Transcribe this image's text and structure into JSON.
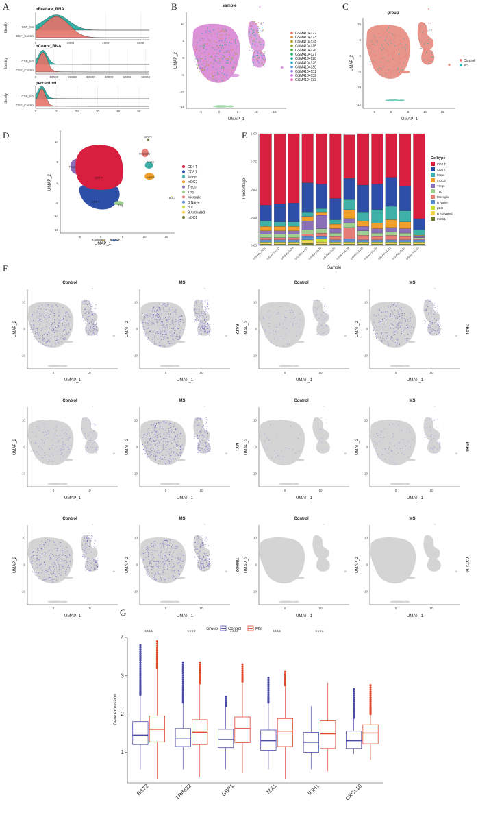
{
  "panels": {
    "A": "A",
    "B": "B",
    "C": "C",
    "D": "D",
    "E": "E",
    "F": "F",
    "G": "G"
  },
  "ridge": {
    "ylabel": "Identity",
    "groups": [
      "CSF_MS",
      "CSF_Control"
    ],
    "colors": {
      "CSF_MS": "#1fa79a",
      "CSF_Control": "#e57369"
    },
    "plots": [
      {
        "title": "nFeature_RNA",
        "ticks": [
          "0",
          "2000",
          "4000",
          "6000"
        ],
        "xmax": 6500,
        "peak": 1200
      },
      {
        "title": "nCount_RNA",
        "ticks": [
          "0",
          "10000",
          "20000",
          "30000",
          "40000",
          "50000",
          "60000"
        ],
        "xmax": 62000,
        "peak": 4000
      },
      {
        "title": "percent.mt",
        "ticks": [
          "0",
          "10",
          "20",
          "30",
          "40",
          "50"
        ],
        "xmax": 55,
        "peak": 3
      }
    ]
  },
  "umap_sample": {
    "title": "sample",
    "xlabel": "UMAP_1",
    "ylabel": "UMAP_2",
    "xticks": [
      "-5",
      "0",
      "5",
      "10",
      "15"
    ],
    "yticks": [
      "10",
      "5",
      "0",
      "-5",
      "-10",
      "-15"
    ],
    "legend": [
      "GSM4104122",
      "GSM4104123",
      "GSM4104124",
      "GSM4104125",
      "GSM4104126",
      "GSM4104127",
      "GSM4104128",
      "GSM4104129",
      "GSM4104130",
      "GSM4104131",
      "GSM4104132",
      "GSM4104133"
    ],
    "colors": [
      "#e8736b",
      "#d98a3a",
      "#b69c2a",
      "#8ea628",
      "#4fae3c",
      "#27b06f",
      "#22b0a2",
      "#25a9c9",
      "#4a97e0",
      "#8f7ee8",
      "#c86ad9",
      "#e466b0"
    ]
  },
  "umap_group": {
    "title": "group",
    "xlabel": "UMAP_1",
    "ylabel": "UMAP_2",
    "xticks": [
      "-5",
      "0",
      "5",
      "10",
      "15"
    ],
    "yticks": [
      "10",
      "5",
      "0",
      "-5",
      "-10",
      "-15"
    ],
    "legend": [
      "Control",
      "MS"
    ],
    "colors": [
      "#e8736b",
      "#1fb8b0"
    ]
  },
  "umap_celltype": {
    "xlabel": "UMAP_1",
    "ylabel": "UMAP_2",
    "xticks": [
      "-5",
      "0",
      "5",
      "10",
      "15"
    ],
    "yticks": [
      "10",
      "5",
      "0",
      "-5",
      "-10",
      "-15"
    ],
    "legend": [
      "CD4 T",
      "CD8 T",
      "Mono",
      "mDC2",
      "Tregs",
      "Tdg",
      "Microglia",
      "B Naive",
      "pDC",
      "B Activated",
      "mDC1"
    ],
    "colors": [
      "#d81f3f",
      "#2d4fa8",
      "#3fb0a8",
      "#f0a02a",
      "#8a70b8",
      "#9fcf8f",
      "#e47d78",
      "#5b8ed0",
      "#c8dd3a",
      "#f4d35e",
      "#6b7a2e"
    ],
    "cluster_labels": [
      "CD4 T",
      "CD8 T",
      "Mono",
      "mDC2",
      "Tdg",
      "Microglia",
      "mDC1",
      "pDC",
      "B Activated",
      "B Naive",
      "Tregs"
    ]
  },
  "chart_data": [
    {
      "type": "bar",
      "title": "",
      "xlabel": "Sample",
      "ylabel": "Percentage",
      "ylim": [
        0,
        1
      ],
      "yticks": [
        "0.00",
        "0.25",
        "0.50",
        "0.75",
        "1.00"
      ],
      "legend_title": "Celltype",
      "categories": [
        "GSM4104122",
        "GSM4104123",
        "GSM4104124",
        "GSM4104125",
        "GSM4104126",
        "GSM4104127",
        "GSM4104128",
        "GSM4104129",
        "GSM4104130",
        "GSM4104131",
        "GSM4104132",
        "GSM4104133"
      ],
      "series": [
        {
          "name": "mDC1",
          "values": [
            0.01,
            0.01,
            0.01,
            0.02,
            0.01,
            0.01,
            0.01,
            0.01,
            0.01,
            0.01,
            0.01,
            0.01
          ]
        },
        {
          "name": "B Activated",
          "values": [
            0.01,
            0.01,
            0.01,
            0.02,
            0.02,
            0.01,
            0.01,
            0.01,
            0.01,
            0.01,
            0.01,
            0.01
          ]
        },
        {
          "name": "pDC",
          "values": [
            0.01,
            0.01,
            0.01,
            0.01,
            0.03,
            0.01,
            0.01,
            0.01,
            0.01,
            0.01,
            0.01,
            0.01
          ]
        },
        {
          "name": "B Naive",
          "values": [
            0.02,
            0.02,
            0.02,
            0.03,
            0.02,
            0.02,
            0.03,
            0.02,
            0.02,
            0.02,
            0.02,
            0.02
          ]
        },
        {
          "name": "Microglia",
          "values": [
            0.02,
            0.02,
            0.02,
            0.02,
            0.03,
            0.03,
            0.1,
            0.04,
            0.03,
            0.04,
            0.03,
            0.01
          ]
        },
        {
          "name": "Tdg",
          "values": [
            0.03,
            0.03,
            0.03,
            0.04,
            0.04,
            0.03,
            0.04,
            0.04,
            0.03,
            0.03,
            0.03,
            0.01
          ]
        },
        {
          "name": "Tregs",
          "values": [
            0.03,
            0.03,
            0.03,
            0.08,
            0.12,
            0.04,
            0.04,
            0.04,
            0.04,
            0.04,
            0.04,
            0.01
          ]
        },
        {
          "name": "mDC2",
          "values": [
            0.04,
            0.04,
            0.04,
            0.04,
            0.03,
            0.04,
            0.08,
            0.05,
            0.05,
            0.07,
            0.06,
            0.01
          ]
        },
        {
          "name": "Mono",
          "values": [
            0.05,
            0.04,
            0.04,
            0.04,
            0.03,
            0.04,
            0.09,
            0.08,
            0.12,
            0.12,
            0.1,
            0.05
          ]
        },
        {
          "name": "CD8 T",
          "values": [
            0.14,
            0.16,
            0.17,
            0.26,
            0.22,
            0.19,
            0.19,
            0.24,
            0.23,
            0.26,
            0.22,
            0.1
          ]
        },
        {
          "name": "CD4 T",
          "values": [
            0.64,
            0.63,
            0.62,
            0.44,
            0.45,
            0.58,
            0.39,
            0.46,
            0.45,
            0.39,
            0.47,
            0.76
          ]
        }
      ]
    },
    {
      "type": "box",
      "title": "",
      "xlabel": "",
      "ylabel": "Gene expression",
      "ylim": [
        0.2,
        4.0
      ],
      "yticks": [
        "1",
        "2",
        "3",
        "4"
      ],
      "legend_title": "Group",
      "groups": [
        "Control",
        "MS"
      ],
      "categories": [
        "BST2",
        "TRIM22",
        "GBP1",
        "MX1",
        "IFIH1",
        "CXCL10"
      ],
      "significance": [
        "****",
        "****",
        "****",
        "****",
        "****",
        ""
      ],
      "series": [
        {
          "name": "Control",
          "q1": [
            1.2,
            1.15,
            1.12,
            1.05,
            1.0,
            1.1
          ],
          "median": [
            1.45,
            1.37,
            1.33,
            1.3,
            1.26,
            1.3
          ],
          "q3": [
            1.8,
            1.62,
            1.6,
            1.58,
            1.52,
            1.55
          ],
          "whisker_low": [
            0.55,
            0.55,
            0.55,
            0.55,
            0.55,
            0.95
          ],
          "whisker_high": [
            2.5,
            2.3,
            2.2,
            2.3,
            2.2,
            1.9
          ],
          "outliers_max": [
            3.8,
            3.35,
            2.45,
            2.95,
            0,
            2.65
          ]
        },
        {
          "name": "MS",
          "q1": [
            1.27,
            1.2,
            1.25,
            1.15,
            1.1,
            1.22
          ],
          "median": [
            1.6,
            1.52,
            1.62,
            1.55,
            1.48,
            1.5
          ],
          "q3": [
            1.95,
            1.85,
            1.92,
            1.88,
            1.82,
            1.72
          ],
          "whisker_low": [
            0.3,
            0.35,
            0.45,
            0.3,
            0.5,
            0.8
          ],
          "whisker_high": [
            3.2,
            2.8,
            2.85,
            2.75,
            2.82,
            2.0
          ],
          "outliers_max": [
            3.9,
            3.35,
            3.3,
            3.1,
            0,
            2.75
          ]
        }
      ]
    }
  ],
  "feature_plots": {
    "xlabel": "UMAP_1",
    "ylabel": "UMAP_2",
    "xticks": [
      "0",
      "10"
    ],
    "yticks": [
      "10",
      "0",
      "-10"
    ],
    "rows": [
      {
        "panels": [
          {
            "title": "Control",
            "gene": "",
            "intensity": 0.75
          },
          {
            "title": "MS",
            "gene": "BST2",
            "intensity": 0.95
          },
          {
            "title": "Control",
            "gene": "",
            "intensity": 0.35
          },
          {
            "title": "MS",
            "gene": "GBP1",
            "intensity": 0.6
          }
        ]
      },
      {
        "panels": [
          {
            "title": "Control",
            "gene": "",
            "intensity": 0.45
          },
          {
            "title": "MS",
            "gene": "MX1",
            "intensity": 0.8
          },
          {
            "title": "Control",
            "gene": "",
            "intensity": 0.08
          },
          {
            "title": "MS",
            "gene": "IFIH1",
            "intensity": 0.3
          }
        ]
      },
      {
        "panels": [
          {
            "title": "Control",
            "gene": "",
            "intensity": 0.65
          },
          {
            "title": "MS",
            "gene": "TRIM22",
            "intensity": 0.75
          },
          {
            "title": "Control",
            "gene": "",
            "intensity": 0.0
          },
          {
            "title": "MS",
            "gene": "CXCL10",
            "intensity": 0.0
          }
        ]
      }
    ]
  }
}
